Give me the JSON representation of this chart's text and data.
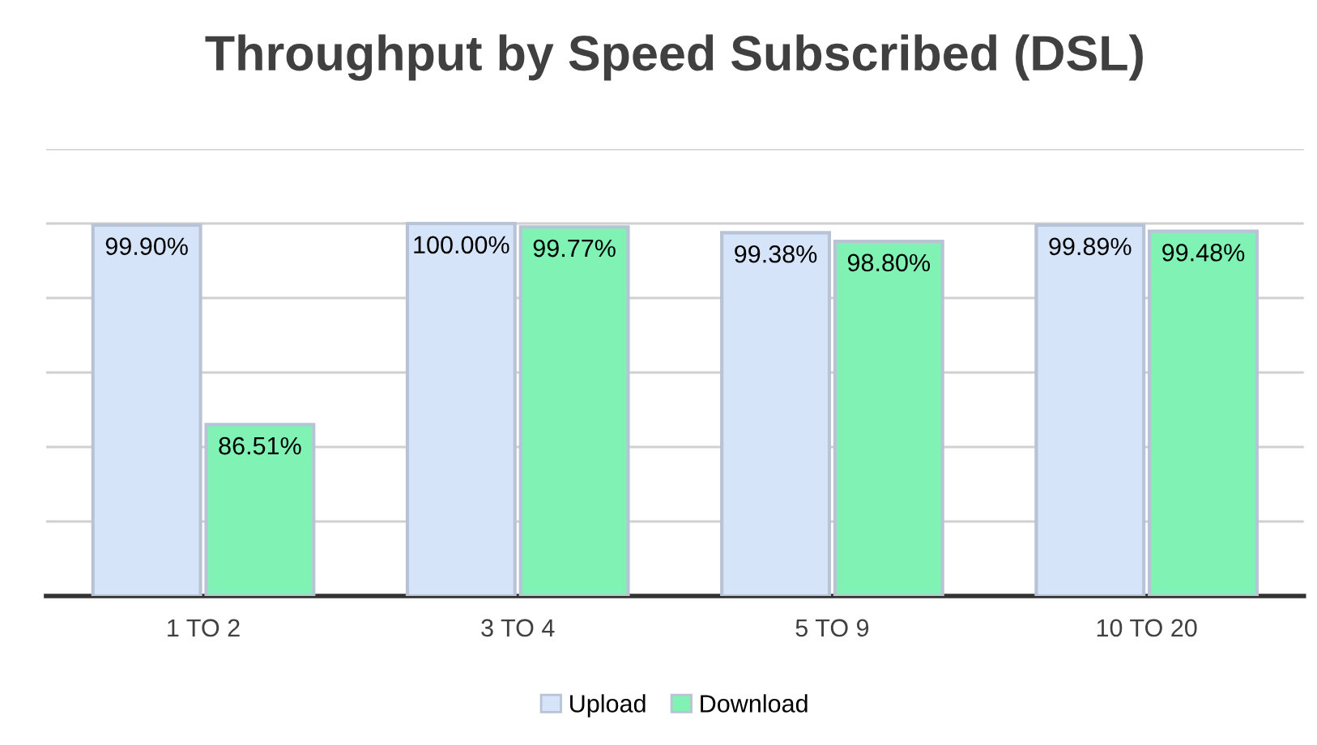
{
  "chart_data": {
    "type": "bar",
    "title": "Throughput by Speed Subscribed (DSL)",
    "categories": [
      "1 TO 2",
      "3 TO 4",
      "5 TO 9",
      "10 TO 20"
    ],
    "series": [
      {
        "name": "Upload",
        "color": "#d6e4fa",
        "values": [
          99.9,
          100.0,
          99.38,
          99.89
        ],
        "value_labels": [
          "99.90%",
          "100.00%",
          "99.38%",
          "99.89%"
        ]
      },
      {
        "name": "Download",
        "color": "#7ff2b4",
        "values": [
          86.51,
          99.77,
          98.8,
          99.48
        ],
        "value_labels": [
          "86.51%",
          "99.77%",
          "98.80%",
          "99.48%"
        ]
      }
    ],
    "ylim": [
      75,
      105
    ],
    "yticks": [
      {
        "value": 75,
        "label": null
      },
      {
        "value": 80,
        "label": null
      },
      {
        "value": 85,
        "label": null
      },
      {
        "value": 90,
        "label": null
      },
      {
        "value": 95,
        "label": null
      },
      {
        "value": 100,
        "label": null
      },
      {
        "value": 105,
        "label": null
      }
    ],
    "tick_labels": "x",
    "grid": "y",
    "legend": "bottom"
  }
}
